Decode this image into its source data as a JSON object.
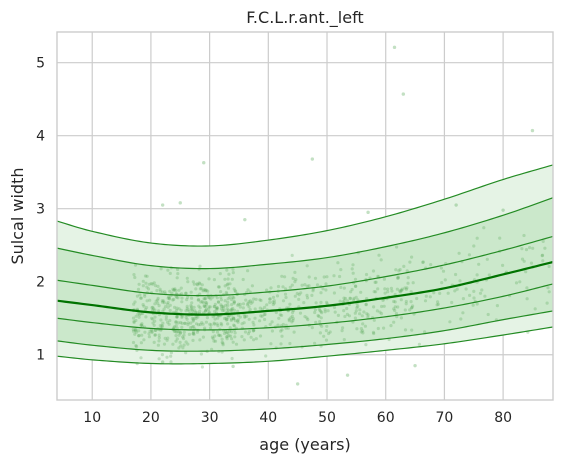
{
  "chart_data": {
    "type": "scatter",
    "title": "F.C.L.r.ant._left",
    "xlabel": "age (years)",
    "ylabel": "Sulcal width",
    "xlim": [
      4,
      88.5
    ],
    "ylim": [
      0.38,
      5.42
    ],
    "xticks": [
      10,
      20,
      30,
      40,
      50,
      60,
      70,
      80
    ],
    "yticks": [
      1,
      2,
      3,
      4,
      5
    ],
    "grid": true,
    "colors": {
      "centile_line": "#238b23",
      "median_line": "#007300",
      "outer_band": "#e5f3e5",
      "inner_band": "#cbe8cb",
      "points": "#54a654",
      "grid": "#cccccc"
    },
    "centile_curves": {
      "x": [
        4,
        10,
        20,
        30,
        40,
        50,
        60,
        70,
        80,
        88.5
      ],
      "outer_lower": [
        0.98,
        0.93,
        0.88,
        0.88,
        0.91,
        0.98,
        1.06,
        1.15,
        1.27,
        1.38
      ],
      "inner_lower": [
        1.19,
        1.13,
        1.06,
        1.05,
        1.08,
        1.14,
        1.22,
        1.33,
        1.48,
        1.6
      ],
      "lower_quartile": [
        1.5,
        1.44,
        1.36,
        1.34,
        1.37,
        1.43,
        1.52,
        1.64,
        1.8,
        1.97
      ],
      "median": [
        1.74,
        1.68,
        1.58,
        1.55,
        1.6,
        1.67,
        1.78,
        1.91,
        2.1,
        2.27
      ],
      "upper_quartile": [
        2.02,
        1.95,
        1.84,
        1.81,
        1.86,
        1.94,
        2.07,
        2.23,
        2.43,
        2.62
      ],
      "inner_upper": [
        2.46,
        2.36,
        2.22,
        2.18,
        2.24,
        2.33,
        2.48,
        2.67,
        2.91,
        3.15
      ],
      "outer_upper": [
        2.83,
        2.69,
        2.53,
        2.49,
        2.57,
        2.7,
        2.89,
        3.13,
        3.4,
        3.6
      ]
    },
    "outliers": [
      {
        "x": 61.5,
        "y": 5.21
      },
      {
        "x": 63,
        "y": 4.57
      },
      {
        "x": 85,
        "y": 4.07
      },
      {
        "x": 29,
        "y": 3.63
      },
      {
        "x": 47.5,
        "y": 3.68
      },
      {
        "x": 22,
        "y": 3.05
      },
      {
        "x": 25,
        "y": 3.08
      },
      {
        "x": 45,
        "y": 0.6
      },
      {
        "x": 53.5,
        "y": 0.72
      },
      {
        "x": 36,
        "y": 2.85
      },
      {
        "x": 57,
        "y": 2.95
      },
      {
        "x": 72,
        "y": 3.05
      },
      {
        "x": 80,
        "y": 2.98
      },
      {
        "x": 65,
        "y": 0.85
      },
      {
        "x": 22,
        "y": 0.9
      },
      {
        "x": 34,
        "y": 0.84
      }
    ],
    "scatter_density": [
      {
        "x_range": [
          17,
          35
        ],
        "n": 520
      },
      {
        "x_range": [
          35,
          50
        ],
        "n": 190
      },
      {
        "x_range": [
          50,
          65
        ],
        "n": 160
      },
      {
        "x_range": [
          65,
          88
        ],
        "n": 90
      }
    ]
  }
}
